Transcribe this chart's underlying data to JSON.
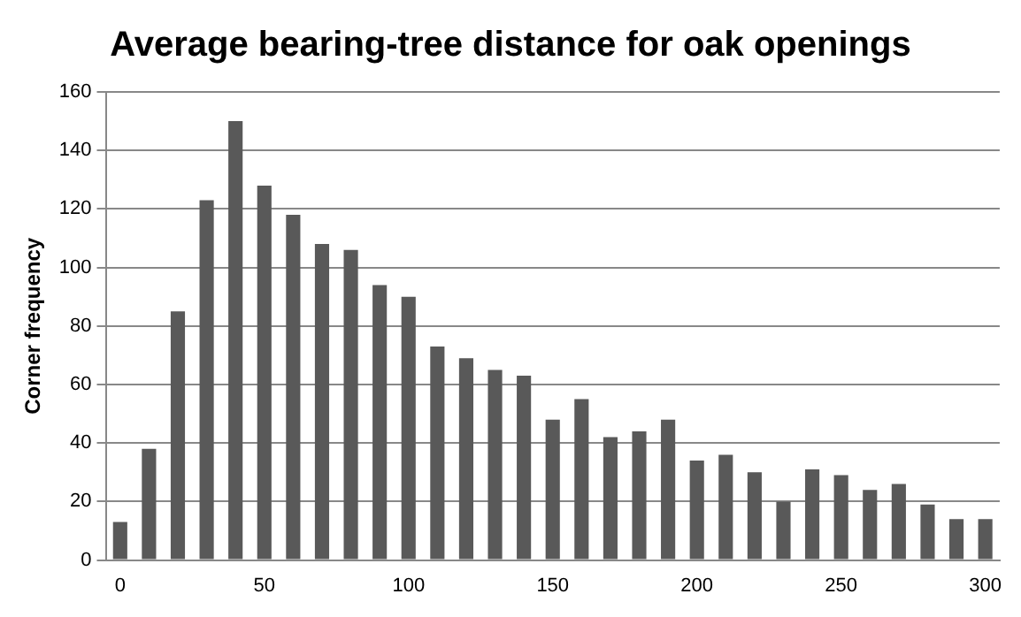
{
  "chart_data": {
    "type": "bar",
    "title": "Average bearing-tree distance for oak openings",
    "ylabel": "Corner frequency",
    "categories": [
      "0",
      null,
      null,
      null,
      null,
      "50",
      null,
      null,
      null,
      null,
      "100",
      null,
      null,
      null,
      null,
      "150",
      null,
      null,
      null,
      null,
      "200",
      null,
      null,
      null,
      null,
      "250",
      null,
      null,
      null,
      null,
      "300"
    ],
    "values": [
      13,
      38,
      85,
      123,
      150,
      128,
      118,
      108,
      106,
      94,
      90,
      73,
      69,
      65,
      63,
      48,
      55,
      42,
      44,
      48,
      34,
      36,
      30,
      20,
      31,
      29,
      24,
      26,
      19,
      14,
      14
    ],
    "color": "#595959",
    "ylim": [
      0,
      160
    ],
    "yticks": [
      0,
      20,
      40,
      60,
      80,
      100,
      120,
      140,
      160
    ],
    "grid": "y"
  }
}
